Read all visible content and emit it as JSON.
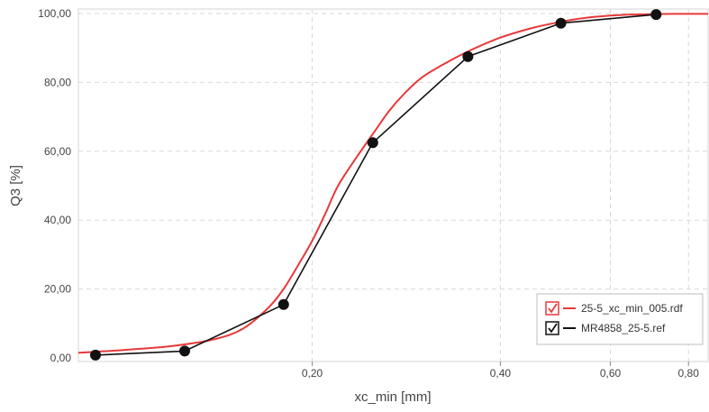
{
  "chart_data": {
    "type": "line",
    "title": "",
    "xlabel": "xc_min [mm]",
    "ylabel": "Q3 [%]",
    "x_scale": "log",
    "xlim": [
      0.0845,
      0.86
    ],
    "ylim": [
      0,
      100
    ],
    "grid": true,
    "x_ticks": [
      {
        "value": 0.2,
        "label": "0,20"
      },
      {
        "value": 0.4,
        "label": "0,40"
      },
      {
        "value": 0.6,
        "label": "0,60"
      },
      {
        "value": 0.8,
        "label": "0,80"
      }
    ],
    "y_ticks": [
      {
        "value": 0,
        "label": "0,00"
      },
      {
        "value": 20,
        "label": "20,00"
      },
      {
        "value": 40,
        "label": "40,00"
      },
      {
        "value": 60,
        "label": "60,00"
      },
      {
        "value": 80,
        "label": "80,00"
      },
      {
        "value": 100,
        "label": "100,00"
      }
    ],
    "legend_position": "bottom-right",
    "series": [
      {
        "name": "25-5_xc_min_005.rdf",
        "color": "#e8393a",
        "markers": false,
        "x": [
          0.0845,
          0.1,
          0.12,
          0.14,
          0.155,
          0.17,
          0.18,
          0.19,
          0.2,
          0.21,
          0.22,
          0.235,
          0.25,
          0.265,
          0.28,
          0.3,
          0.33,
          0.36,
          0.4,
          0.45,
          0.5,
          0.55,
          0.6,
          0.65,
          0.7,
          0.75,
          0.8,
          0.86
        ],
        "y": [
          1.5,
          2.3,
          3.5,
          5.5,
          8.5,
          14.5,
          20,
          27,
          34,
          42,
          50,
          58,
          65,
          71.5,
          76.5,
          81.5,
          86,
          89.5,
          93,
          95.8,
          97.6,
          98.8,
          99.4,
          99.7,
          99.8,
          99.9,
          99.9,
          99.9
        ]
      },
      {
        "name": "MR4858_25-5.ref",
        "color": "#111111",
        "markers": true,
        "x": [
          0.09,
          0.125,
          0.18,
          0.25,
          0.355,
          0.5,
          0.71
        ],
        "y": [
          0.8,
          2,
          15.5,
          62.5,
          87.5,
          97.2,
          99.7
        ]
      }
    ]
  }
}
